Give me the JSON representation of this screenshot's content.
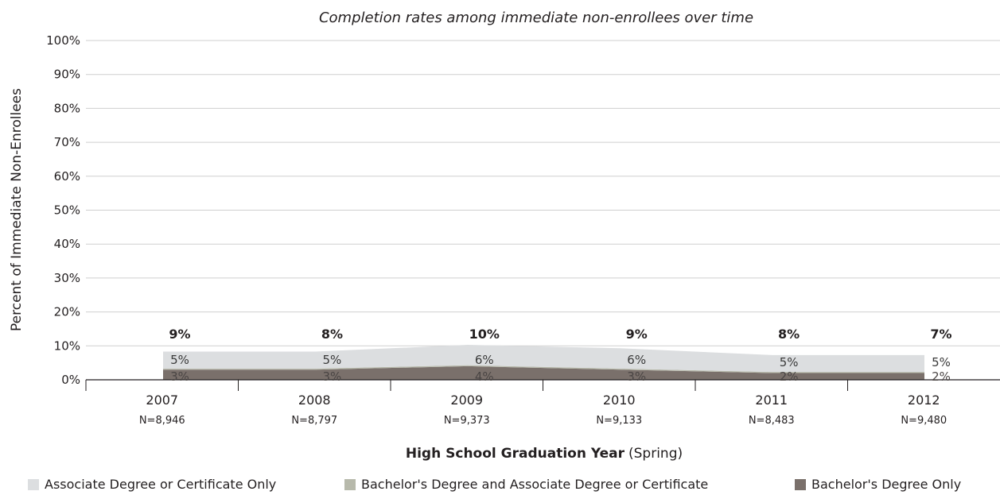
{
  "chart_data": {
    "type": "area",
    "title": "Completion rates among immediate non-enrollees over time",
    "ylabel": "Percent of Immediate Non-Enrollees",
    "xlabel_bold": "High School Graduation Year",
    "xlabel_suffix": "(Spring)",
    "ylim": [
      0,
      100
    ],
    "yticks": [
      "0%",
      "10%",
      "20%",
      "30%",
      "40%",
      "50%",
      "60%",
      "70%",
      "80%",
      "90%",
      "100%"
    ],
    "grid": true,
    "legend_position": "bottom",
    "categories": [
      "2007",
      "2008",
      "2009",
      "2010",
      "2011",
      "2012"
    ],
    "n_labels": [
      "N=8,946",
      "N=8,797",
      "N=9,373",
      "N=9,133",
      "N=8,483",
      "N=9,480"
    ],
    "totals": [
      9,
      8,
      10,
      9,
      8,
      7
    ],
    "total_labels": [
      "9%",
      "8%",
      "10%",
      "9%",
      "8%",
      "7%"
    ],
    "series": [
      {
        "name": "Bachelor's Degree Only",
        "color": "#7a706b",
        "values": [
          3,
          3,
          4,
          3,
          2,
          2
        ],
        "labels": [
          "3%",
          "3%",
          "4%",
          "3%",
          "2%",
          "2%"
        ]
      },
      {
        "name": "Bachelor's Degree and Associate Degree or Certificate",
        "color": "#b7b9ab",
        "values": [
          0.3,
          0.3,
          0.3,
          0.3,
          0.3,
          0.3
        ],
        "labels": []
      },
      {
        "name": "Associate Degree or Certificate Only",
        "color": "#dcdee0",
        "values": [
          5,
          5,
          6,
          6,
          5,
          5
        ],
        "labels": [
          "5%",
          "5%",
          "6%",
          "6%",
          "5%",
          "5%"
        ]
      }
    ],
    "legend_order": [
      "Associate Degree or Certificate Only",
      "Bachelor's Degree and Associate Degree or Certificate",
      "Bachelor's Degree Only"
    ]
  }
}
